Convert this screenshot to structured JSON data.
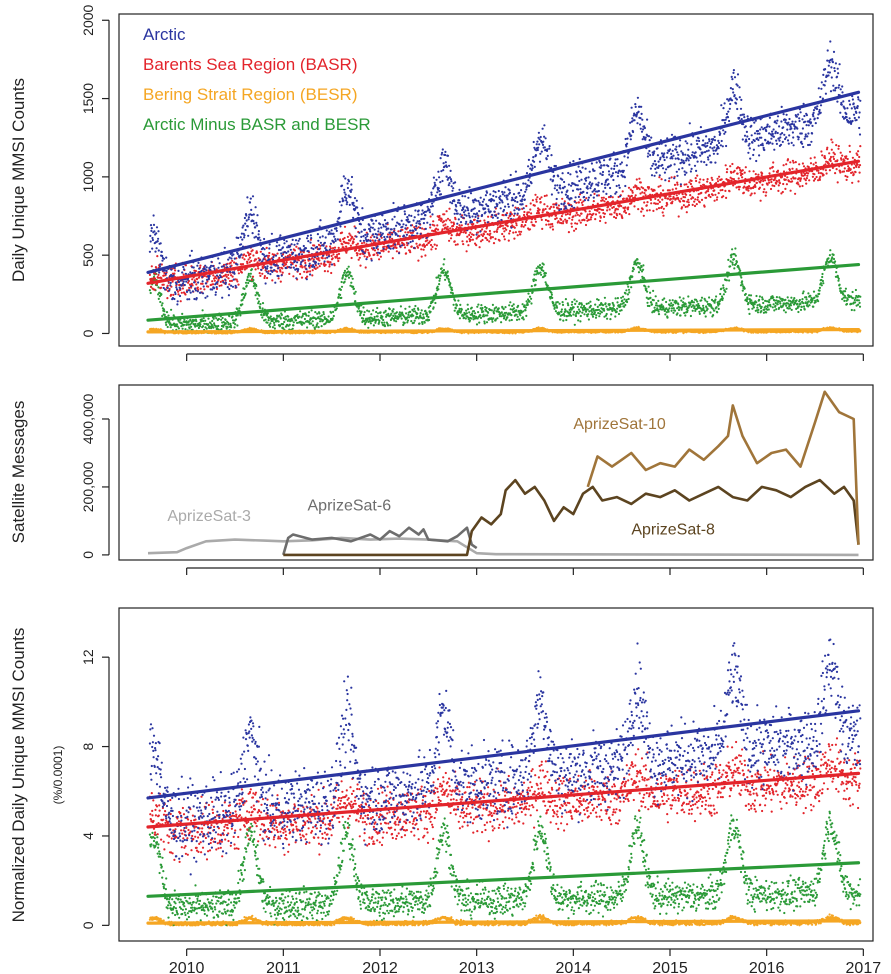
{
  "colors": {
    "arctic": "#2a35a0",
    "basr": "#e3242b",
    "besr": "#f5a623",
    "minus": "#2a9a37",
    "sat3": "#aaaaaa",
    "sat6": "#6d6d6d",
    "sat8": "#5c4420",
    "sat10": "#a0753a"
  },
  "chart_data": [
    {
      "type": "scatter",
      "ylabel": "Daily Unique MMSI Counts",
      "xlim": [
        2009.3,
        2017.1
      ],
      "ylim": [
        -80,
        2040
      ],
      "yticks": [
        0,
        500,
        1000,
        1500,
        2000
      ],
      "xticks": [
        2010,
        2011,
        2012,
        2013,
        2014,
        2015,
        2016,
        2017
      ],
      "legend_position": "top-left",
      "series": [
        {
          "key": "arctic",
          "name": "Arctic",
          "base": 400,
          "amp": 220,
          "noise": 70,
          "trend": [
            [
              2009.6,
              390
            ],
            [
              2016.95,
              1540
            ]
          ]
        },
        {
          "key": "basr",
          "name": "Barents Sea Region (BASR)",
          "base": 300,
          "amp": 70,
          "noise": 50,
          "trend": [
            [
              2009.6,
              320
            ],
            [
              2016.95,
              1100
            ]
          ]
        },
        {
          "key": "besr",
          "name": "Bering Strait Region (BESR)",
          "base": 5,
          "amp": 20,
          "noise": 8,
          "trend": [
            [
              2009.6,
              10
            ],
            [
              2016.95,
              25
            ]
          ]
        },
        {
          "key": "minus",
          "name": "Arctic Minus BASR and BESR",
          "base": 60,
          "amp": 180,
          "noise": 30,
          "trend": [
            [
              2009.6,
              85
            ],
            [
              2016.95,
              440
            ]
          ]
        }
      ]
    },
    {
      "type": "line",
      "ylabel": "Satellite Messages",
      "xlim": [
        2009.3,
        2017.1
      ],
      "ylim": [
        -15000,
        500000
      ],
      "yticks": [
        0,
        200000,
        400000
      ],
      "ytick_labels": [
        "0",
        "200,000",
        "400,000"
      ],
      "xticks": [
        2010,
        2011,
        2012,
        2013,
        2014,
        2015,
        2016,
        2017
      ],
      "series": [
        {
          "key": "sat3",
          "name": "AprizeSat-3",
          "x": [
            2009.6,
            2009.9,
            2010.0,
            2010.2,
            2010.5,
            2010.8,
            2011.0,
            2011.3,
            2011.6,
            2011.9,
            2012.2,
            2012.5,
            2012.8,
            2013.0,
            2013.2,
            2016.95
          ],
          "y": [
            5000,
            8000,
            20000,
            40000,
            45000,
            42000,
            40000,
            43000,
            50000,
            45000,
            48000,
            45000,
            40000,
            5000,
            2000,
            0
          ]
        },
        {
          "key": "sat6",
          "name": "AprizeSat-6",
          "x": [
            2011.0,
            2011.05,
            2011.1,
            2011.3,
            2011.5,
            2011.7,
            2011.9,
            2012.0,
            2012.1,
            2012.2,
            2012.3,
            2012.4,
            2012.45,
            2012.5,
            2012.7,
            2012.8,
            2012.9,
            2012.95,
            2013.0
          ],
          "y": [
            0,
            50000,
            60000,
            45000,
            50000,
            40000,
            60000,
            45000,
            70000,
            55000,
            80000,
            60000,
            75000,
            45000,
            40000,
            55000,
            80000,
            30000,
            20000
          ]
        },
        {
          "key": "sat8",
          "name": "AprizeSat-8",
          "x": [
            2011.0,
            2012.9,
            2012.95,
            2013.05,
            2013.15,
            2013.25,
            2013.3,
            2013.4,
            2013.5,
            2013.6,
            2013.7,
            2013.8,
            2013.9,
            2014.0,
            2014.1,
            2014.2,
            2014.3,
            2014.45,
            2014.6,
            2014.75,
            2014.9,
            2015.05,
            2015.2,
            2015.35,
            2015.5,
            2015.65,
            2015.8,
            2015.95,
            2016.1,
            2016.25,
            2016.4,
            2016.55,
            2016.7,
            2016.8,
            2016.9,
            2016.95
          ],
          "y": [
            0,
            0,
            70000,
            110000,
            90000,
            120000,
            190000,
            220000,
            180000,
            200000,
            160000,
            100000,
            140000,
            120000,
            180000,
            200000,
            160000,
            170000,
            150000,
            180000,
            170000,
            190000,
            160000,
            180000,
            200000,
            170000,
            160000,
            200000,
            190000,
            170000,
            200000,
            220000,
            180000,
            200000,
            160000,
            30000
          ]
        },
        {
          "key": "sat10",
          "name": "AprizeSat-10",
          "x": [
            2014.15,
            2014.25,
            2014.4,
            2014.5,
            2014.6,
            2014.75,
            2014.9,
            2015.05,
            2015.2,
            2015.35,
            2015.5,
            2015.6,
            2015.65,
            2015.75,
            2015.9,
            2016.05,
            2016.2,
            2016.35,
            2016.5,
            2016.6,
            2016.75,
            2016.9,
            2016.95
          ],
          "y": [
            200000,
            290000,
            260000,
            280000,
            300000,
            250000,
            270000,
            260000,
            310000,
            280000,
            320000,
            350000,
            440000,
            350000,
            270000,
            300000,
            310000,
            260000,
            390000,
            480000,
            420000,
            400000,
            30000
          ]
        }
      ]
    },
    {
      "type": "scatter",
      "ylabel": "Normalized Daily Unique MMSI Counts",
      "ylabel_sub": "(%/0.0001)",
      "xlim": [
        2009.3,
        2017.1
      ],
      "ylim": [
        -0.7,
        14.2
      ],
      "yticks": [
        0,
        4,
        8,
        12
      ],
      "xticks": [
        2010,
        2011,
        2012,
        2013,
        2014,
        2015,
        2016,
        2017
      ],
      "series": [
        {
          "key": "arctic",
          "name": "Arctic",
          "base": 6.5,
          "amp": 2.2,
          "noise": 0.8,
          "trend": [
            [
              2009.6,
              5.7
            ],
            [
              2016.95,
              9.6
            ]
          ]
        },
        {
          "key": "basr",
          "name": "Barents Sea Region (BASR)",
          "base": 5,
          "amp": 0.9,
          "noise": 0.6,
          "trend": [
            [
              2009.6,
              4.4
            ],
            [
              2016.95,
              6.8
            ]
          ]
        },
        {
          "key": "besr",
          "name": "Bering Strait Region (BESR)",
          "base": 0.05,
          "amp": 0.25,
          "noise": 0.1,
          "trend": [
            [
              2009.6,
              0.1
            ],
            [
              2016.95,
              0.2
            ]
          ]
        },
        {
          "key": "minus",
          "name": "Arctic Minus BASR and BESR",
          "base": 1.0,
          "amp": 2.0,
          "noise": 0.35,
          "trend": [
            [
              2009.6,
              1.3
            ],
            [
              2016.95,
              2.8
            ]
          ]
        }
      ]
    }
  ],
  "sat_labels": [
    {
      "key": "sat3",
      "text": "AprizeSat-3",
      "x": 2009.8,
      "y": 100000
    },
    {
      "key": "sat6",
      "text": "AprizeSat-6",
      "x": 2011.25,
      "y": 130000
    },
    {
      "key": "sat10",
      "text": "AprizeSat-10",
      "x": 2014.0,
      "y": 370000
    },
    {
      "key": "sat8",
      "text": "AprizeSat-8",
      "x": 2014.6,
      "y": 60000
    }
  ]
}
